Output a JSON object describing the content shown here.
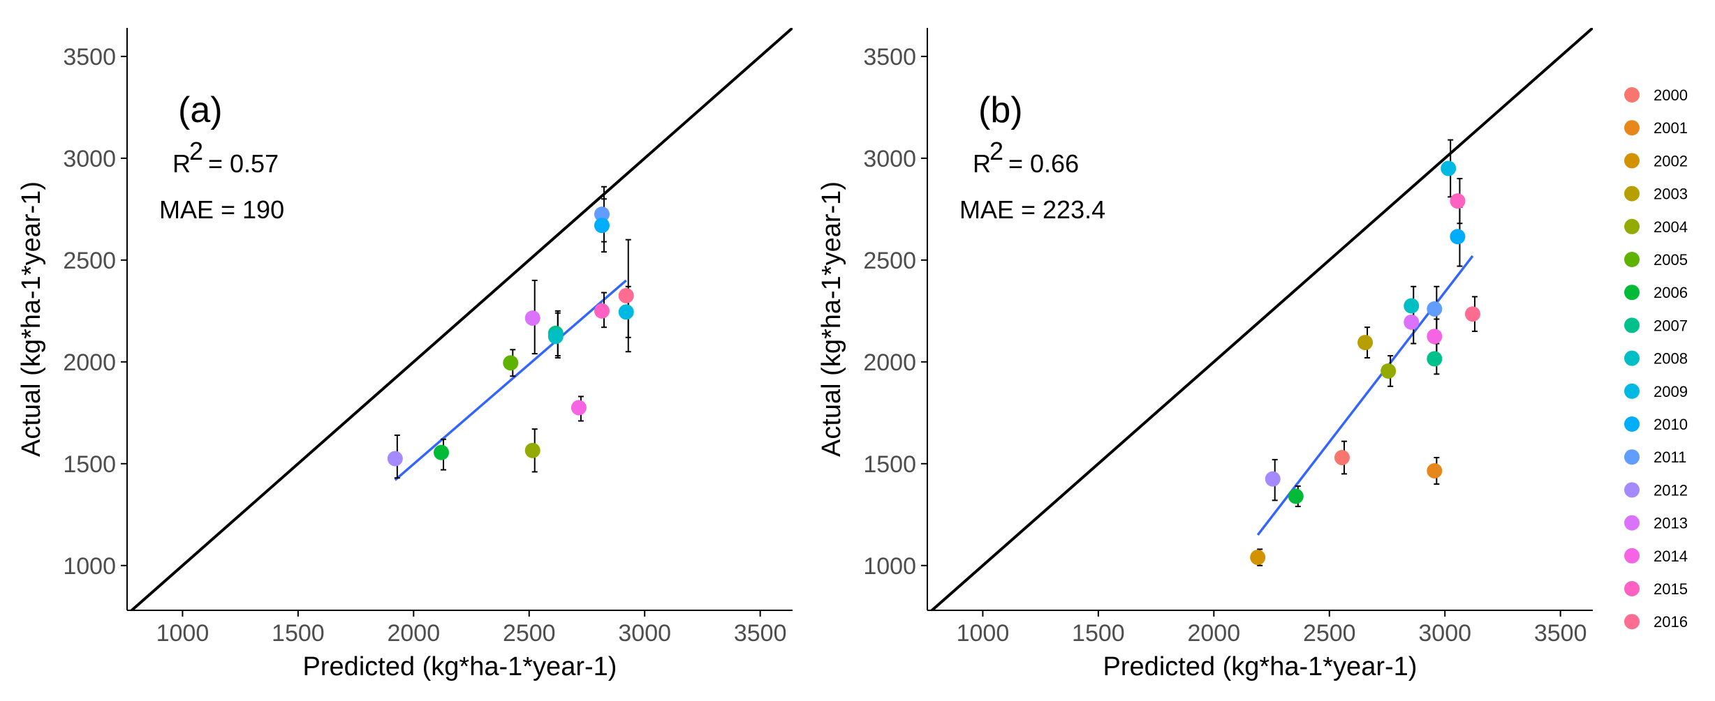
{
  "chart_data": [
    {
      "type": "scatter",
      "panel_label": "(a)",
      "xlabel": "Predicted (kg*ha-1*year-1)",
      "ylabel": "Actual (kg*ha-1*year-1)",
      "xlim": [
        760,
        3640
      ],
      "ylim": [
        780,
        3640
      ],
      "xticks": [
        1000,
        1500,
        2000,
        2500,
        3000,
        3500
      ],
      "yticks": [
        1000,
        1500,
        2000,
        2500,
        3000,
        3500
      ],
      "r2_label": "R",
      "r2_sup": "2",
      "r2_text": " = 0.57",
      "mae_text": "MAE = 190",
      "identity_line": true,
      "fit_line": {
        "x": [
          1920,
          2920
        ],
        "y": [
          1420,
          2400
        ]
      },
      "points": [
        {
          "year": "2012",
          "x": 1920,
          "y": 1525,
          "ymin": 1430,
          "ymax": 1640
        },
        {
          "year": "2006",
          "x": 2120,
          "y": 1555,
          "ymin": 1470,
          "ymax": 1620
        },
        {
          "year": "2005",
          "x": 2420,
          "y": 1995,
          "ymin": 1930,
          "ymax": 2060
        },
        {
          "year": "2004",
          "x": 2515,
          "y": 1565,
          "ymin": 1460,
          "ymax": 1670
        },
        {
          "year": "2013",
          "x": 2515,
          "y": 2215,
          "ymin": 2040,
          "ymax": 2400
        },
        {
          "year": "2007",
          "x": 2615,
          "y": 2140,
          "ymin": 2030,
          "ymax": 2250
        },
        {
          "year": "2008",
          "x": 2615,
          "y": 2125,
          "ymin": 2020,
          "ymax": 2240
        },
        {
          "year": "2014",
          "x": 2715,
          "y": 1775,
          "ymin": 1710,
          "ymax": 1830
        },
        {
          "year": "2011",
          "x": 2815,
          "y": 2725,
          "ymin": 2590,
          "ymax": 2860
        },
        {
          "year": "2010",
          "x": 2815,
          "y": 2670,
          "ymin": 2540,
          "ymax": 2800
        },
        {
          "year": "2015",
          "x": 2815,
          "y": 2250,
          "ymin": 2170,
          "ymax": 2340
        },
        {
          "year": "2016",
          "x": 2920,
          "y": 2325,
          "ymin": 2050,
          "ymax": 2600
        },
        {
          "year": "2009",
          "x": 2920,
          "y": 2245,
          "ymin": 2120,
          "ymax": 2370
        }
      ]
    },
    {
      "type": "scatter",
      "panel_label": "(b)",
      "xlabel": "Predicted (kg*ha-1*year-1)",
      "ylabel": "Actual (kg*ha-1*year-1)",
      "xlim": [
        760,
        3640
      ],
      "ylim": [
        780,
        3640
      ],
      "xticks": [
        1000,
        1500,
        2000,
        2500,
        3000,
        3500
      ],
      "yticks": [
        1000,
        1500,
        2000,
        2500,
        3000,
        3500
      ],
      "r2_label": "R",
      "r2_sup": "2",
      "r2_text": " = 0.66",
      "mae_text": "MAE = 223.4",
      "identity_line": true,
      "fit_line": {
        "x": [
          2190,
          3120
        ],
        "y": [
          1150,
          2520
        ]
      },
      "points": [
        {
          "year": "2002",
          "x": 2190,
          "y": 1040,
          "ymin": 1000,
          "ymax": 1080
        },
        {
          "year": "2012",
          "x": 2255,
          "y": 1425,
          "ymin": 1320,
          "ymax": 1520
        },
        {
          "year": "2006",
          "x": 2355,
          "y": 1340,
          "ymin": 1290,
          "ymax": 1390
        },
        {
          "year": "2000",
          "x": 2555,
          "y": 1530,
          "ymin": 1450,
          "ymax": 1610
        },
        {
          "year": "2003",
          "x": 2655,
          "y": 2095,
          "ymin": 2020,
          "ymax": 2170
        },
        {
          "year": "2004",
          "x": 2755,
          "y": 1955,
          "ymin": 1880,
          "ymax": 2030
        },
        {
          "year": "2008",
          "x": 2855,
          "y": 2275,
          "ymin": 2190,
          "ymax": 2370
        },
        {
          "year": "2013",
          "x": 2855,
          "y": 2195,
          "ymin": 2090,
          "ymax": 2300
        },
        {
          "year": "2001",
          "x": 2955,
          "y": 1465,
          "ymin": 1400,
          "ymax": 1530
        },
        {
          "year": "2007",
          "x": 2955,
          "y": 2015,
          "ymin": 1940,
          "ymax": 2090
        },
        {
          "year": "2011",
          "x": 2955,
          "y": 2260,
          "ymin": 2150,
          "ymax": 2370
        },
        {
          "year": "2014",
          "x": 2955,
          "y": 2125,
          "ymin": 2040,
          "ymax": 2210
        },
        {
          "year": "2009",
          "x": 3015,
          "y": 2950,
          "ymin": 2810,
          "ymax": 3090
        },
        {
          "year": "2015",
          "x": 3055,
          "y": 2790,
          "ymin": 2680,
          "ymax": 2900
        },
        {
          "year": "2010",
          "x": 3055,
          "y": 2615,
          "ymin": 2470,
          "ymax": 2760
        },
        {
          "year": "2016",
          "x": 3120,
          "y": 2235,
          "ymin": 2150,
          "ymax": 2320
        }
      ]
    }
  ],
  "legend": {
    "entries": [
      {
        "year": "2000",
        "color": "#F8766D"
      },
      {
        "year": "2001",
        "color": "#E7861B"
      },
      {
        "year": "2002",
        "color": "#D39200"
      },
      {
        "year": "2003",
        "color": "#B79F00"
      },
      {
        "year": "2004",
        "color": "#93AA00"
      },
      {
        "year": "2005",
        "color": "#5EB300"
      },
      {
        "year": "2006",
        "color": "#00BA38"
      },
      {
        "year": "2007",
        "color": "#00C08B"
      },
      {
        "year": "2008",
        "color": "#00BFC4"
      },
      {
        "year": "2009",
        "color": "#00B9E3"
      },
      {
        "year": "2010",
        "color": "#00ADFA"
      },
      {
        "year": "2011",
        "color": "#619CFF"
      },
      {
        "year": "2012",
        "color": "#A58AFF"
      },
      {
        "year": "2013",
        "color": "#DB72FB"
      },
      {
        "year": "2014",
        "color": "#F564E3"
      },
      {
        "year": "2015",
        "color": "#FF61C3"
      },
      {
        "year": "2016",
        "color": "#FF6C91"
      }
    ]
  },
  "colors": {
    "identity_line": "#000000",
    "fit_line": "#3366FF",
    "error_bar": "#000000",
    "axis": "#000000"
  }
}
